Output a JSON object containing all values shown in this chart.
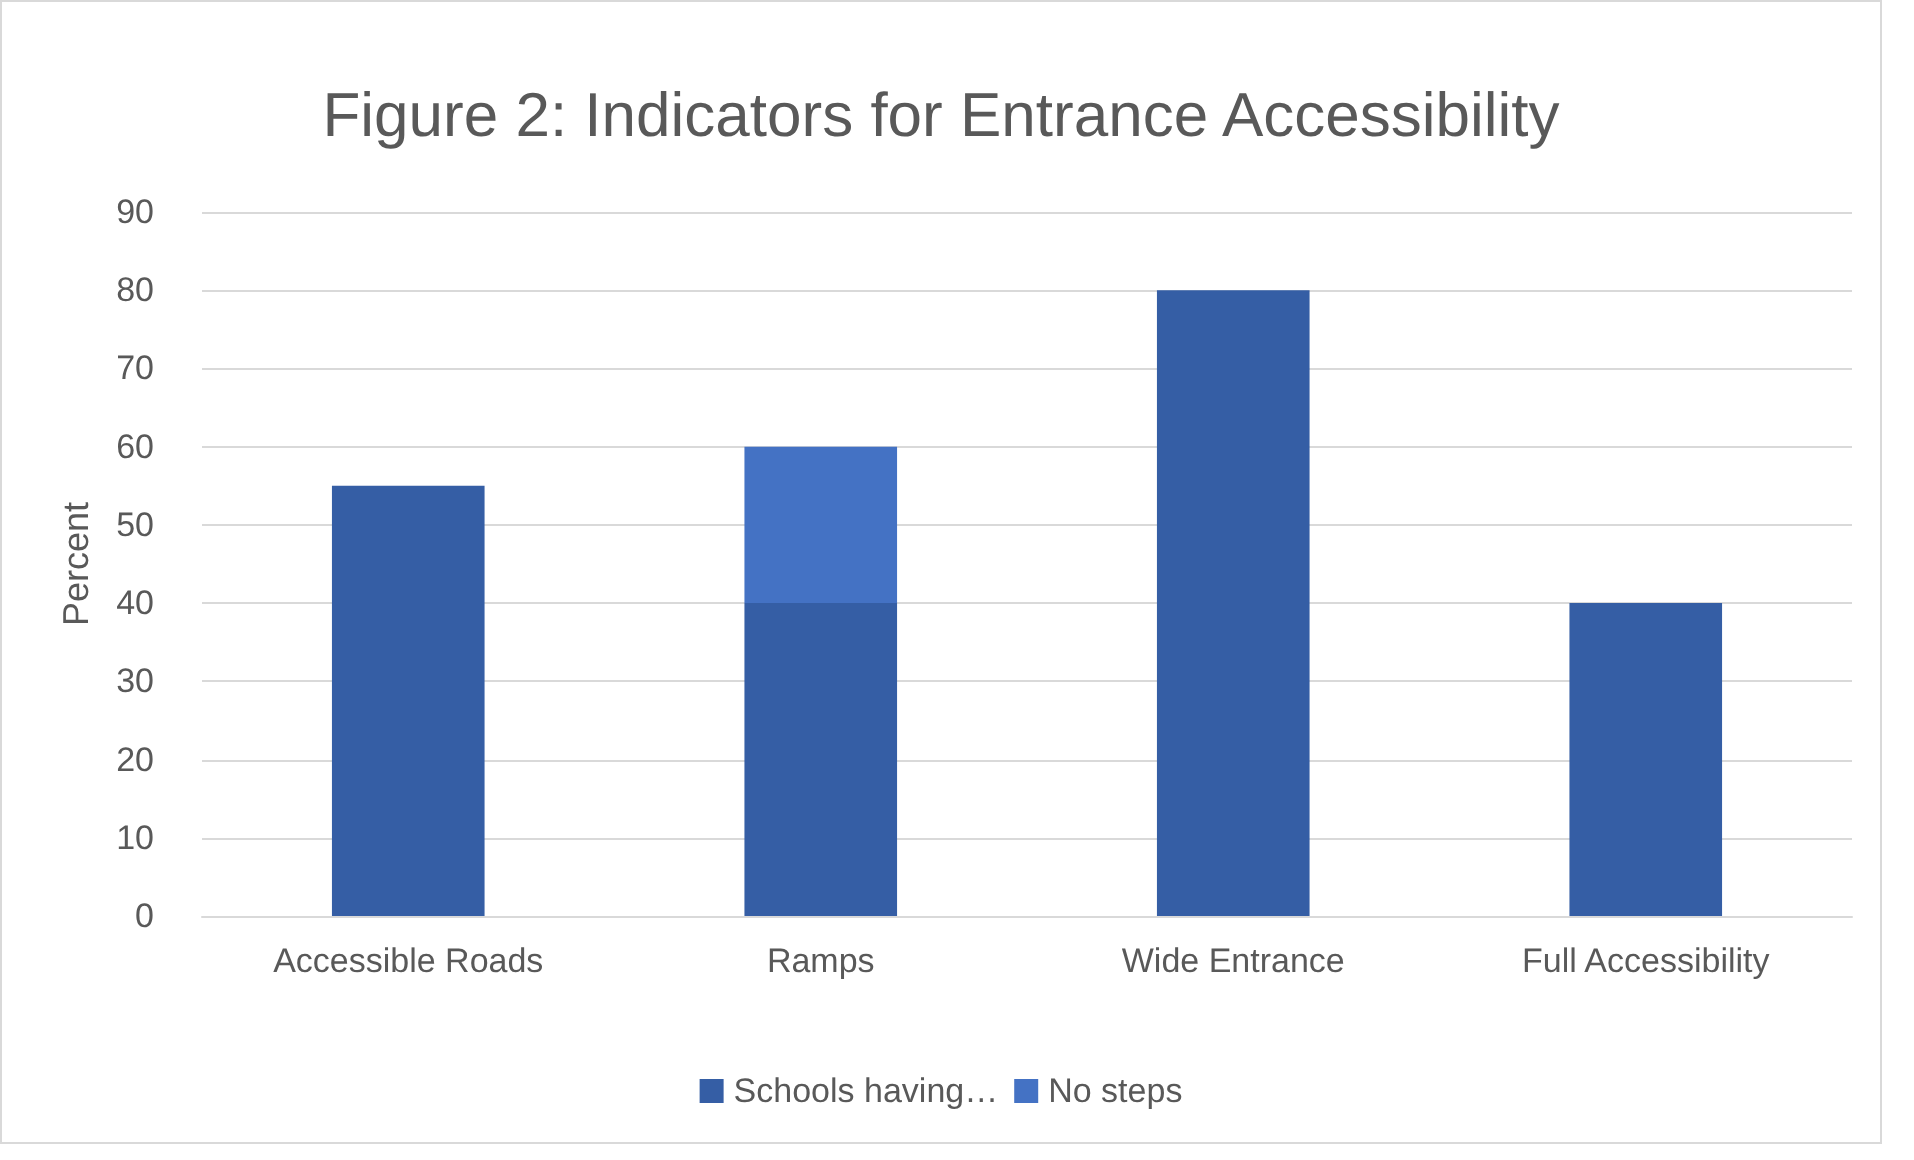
{
  "chart_data": {
    "type": "bar",
    "title": "Figure 2: Indicators for Entrance Accessibility",
    "ylabel": "Percent",
    "categories": [
      "Accessible Roads",
      "Ramps",
      "Wide Entrance",
      "Full Accessibility"
    ],
    "series": [
      {
        "name": "Schools having…",
        "color": "#355ea5",
        "values": [
          55,
          40,
          80,
          40
        ]
      },
      {
        "name": "No steps",
        "color": "#4472c4",
        "values": [
          null,
          20,
          null,
          null
        ]
      }
    ],
    "stacked": true,
    "ylim": [
      0,
      90
    ],
    "yticks": [
      0,
      10,
      20,
      30,
      40,
      50,
      60,
      70,
      80,
      90
    ],
    "grid": "y",
    "legend": "bottom"
  }
}
